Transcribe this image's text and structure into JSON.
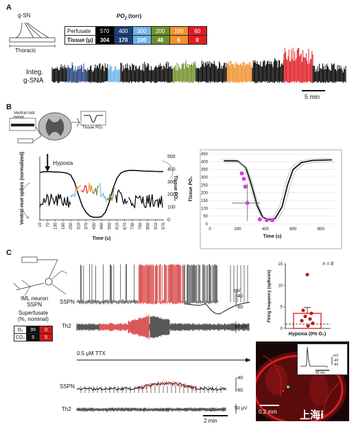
{
  "panel_a": {
    "label": "A",
    "schematic": {
      "nerve_label": "g-SN",
      "region_label": "Thoracic"
    },
    "po2_header": "PO",
    "po2_sub": "2",
    "po2_unit": " (torr)",
    "rows": [
      {
        "label": "Perfusate",
        "values": [
          "570",
          "400",
          "300",
          "200",
          "100",
          "60"
        ]
      },
      {
        "label": "Tissue (μ)",
        "values": [
          "304",
          "170",
          "100",
          "48",
          "6",
          "0"
        ]
      }
    ],
    "colors": [
      "#000000",
      "#1f3f7a",
      "#6fb4e8",
      "#6f8f2a",
      "#f0922e",
      "#e01e24"
    ],
    "trace_label_1": "Integ.",
    "trace_label_2": "g-SNA",
    "scale_label": "5 min"
  },
  "panel_b": {
    "label": "B",
    "schematic": {
      "nerve_line1": "Ventral root",
      "nerve_line2": "nerve",
      "tissue_label": "Tissue PO₂"
    },
    "chart_data": [
      {
        "type": "line",
        "annotation": "Hypoxia",
        "xlabel": "Time (s)",
        "ylabel_left": "Ventral root spikes (normalized)",
        "ylabel_right": "Tissue PO₂",
        "x_ticks": [
          "10",
          "70",
          "130",
          "190",
          "250",
          "310",
          "370",
          "430",
          "490",
          "550",
          "610",
          "670",
          "730",
          "790",
          "850",
          "910",
          "970"
        ],
        "y_right_ticks": [
          "0",
          "100",
          "200",
          "300",
          "400",
          "500"
        ],
        "y_right_lim": [
          0,
          500
        ],
        "series": [
          {
            "values_x": [
              10,
              40,
              70,
              100,
              130,
              160,
              190,
              220,
              250,
              280,
              310,
              340,
              370,
              400,
              430,
              460,
              490,
              520,
              550,
              580,
              610,
              640,
              670,
              700,
              730,
              760,
              790,
              820,
              850,
              880,
              910,
              940,
              970
            ],
            "values_y": [
              375,
              380,
              382,
              380,
              378,
              378,
              375,
              370,
              355,
              300,
              200,
              110,
              60,
              30,
              20,
              20,
              25,
              60,
              140,
              250,
              330,
              370,
              385,
              390,
              392,
              390,
              388,
              386,
              385,
              384,
              383,
              382,
              382
            ]
          }
        ]
      },
      {
        "type": "scatter",
        "xlabel": "Time (s)",
        "ylabel": "Tissue PO₂",
        "x_ticks": [
          "0",
          "200",
          "400",
          "600",
          "800"
        ],
        "y_ticks": [
          "0",
          "50",
          "100",
          "150",
          "200",
          "250",
          "300",
          "350",
          "400",
          "450"
        ],
        "xlim": [
          0,
          900
        ],
        "ylim": [
          0,
          450
        ],
        "points": [
          {
            "x": 230,
            "y": 325
          },
          {
            "x": 245,
            "y": 290
          },
          {
            "x": 255,
            "y": 240
          },
          {
            "x": 270,
            "y": 135
          },
          {
            "x": 360,
            "y": 30
          },
          {
            "x": 410,
            "y": 25
          },
          {
            "x": 450,
            "y": 25
          }
        ],
        "fit_line": [
          [
            100,
            405
          ],
          [
            200,
            405
          ],
          [
            260,
            360
          ],
          [
            300,
            250
          ],
          [
            340,
            120
          ],
          [
            380,
            45
          ],
          [
            420,
            28
          ],
          [
            470,
            35
          ],
          [
            520,
            110
          ],
          [
            560,
            250
          ],
          [
            600,
            350
          ],
          [
            660,
            395
          ],
          [
            740,
            408
          ],
          [
            880,
            412
          ]
        ]
      }
    ]
  },
  "panel_c": {
    "label": "C",
    "neuron_line1": "IML neuron",
    "neuron_line2": "SSPN",
    "superfusate_line1": "Superfusate",
    "superfusate_line2": "(%, nominal)",
    "gas_table": [
      {
        "gas": "O₂",
        "values": [
          "95",
          "0"
        ]
      },
      {
        "gas": "CO₂",
        "values": [
          "5",
          "5"
        ]
      }
    ],
    "trace_sspn": "SSPN",
    "trace_th2": "Th2",
    "mv_label": "mV",
    "mv_top": "-40",
    "mv_bottom": "-60",
    "uv_label": "50 μV",
    "ttx_label": "0.5 μM TTX",
    "scale_label": "2 min",
    "chart_data": {
      "type": "bar",
      "n_label": "n = 8",
      "ylabel": "Firing frequency (spikes/s)",
      "categories": [
        "Hypoxia (0% O₂)"
      ],
      "values": [
        3.5
      ],
      "y_ticks": [
        "0",
        "5",
        "10",
        "15"
      ],
      "ylim": [
        0,
        15
      ],
      "points": [
        12.5,
        4.2,
        3.5,
        2.8,
        2.2,
        1.8,
        1.2,
        0.6
      ]
    },
    "micrograph": {
      "scale_label": "0.2 mm",
      "inset_mv": "mV",
      "inset_top": "-40",
      "inset_bottom": "-60",
      "inset_scale": "50 ms"
    }
  },
  "watermark": "上海i"
}
